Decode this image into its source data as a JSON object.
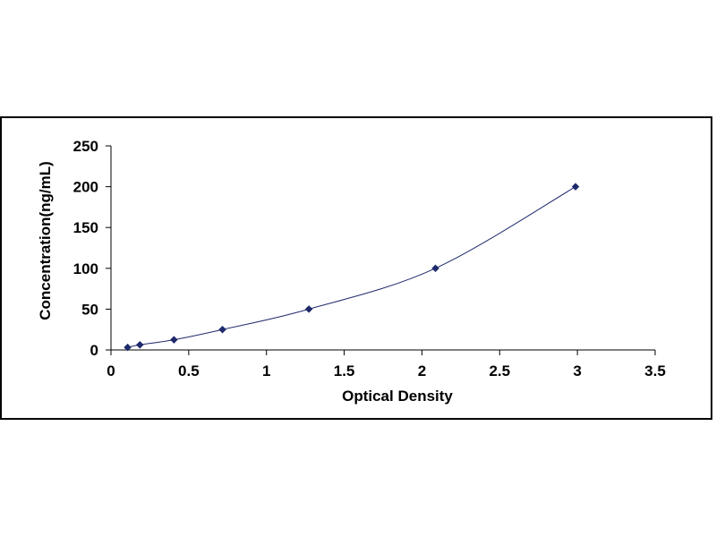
{
  "chart_data": {
    "type": "scatter",
    "title": "",
    "xlabel": "Optical Density",
    "ylabel": "Concentration(ng/mL)",
    "xlim": [
      0,
      3.5
    ],
    "ylim": [
      0,
      250
    ],
    "x_ticks": [
      0,
      0.5,
      1,
      1.5,
      2,
      2.5,
      3,
      3.5
    ],
    "x_tick_labels": [
      "0",
      "0.5",
      "1",
      "1.5",
      "2",
      "2.5",
      "3",
      "3.5"
    ],
    "y_ticks": [
      0,
      50,
      100,
      150,
      200,
      250
    ],
    "y_tick_labels": [
      "0",
      "50",
      "100",
      "150",
      "200",
      "250"
    ],
    "grid": false,
    "legend": "none",
    "series": [
      {
        "x": [
          0.107,
          0.186,
          0.405,
          0.717,
          1.273,
          2.087,
          2.988
        ],
        "y": [
          3.12,
          6.25,
          12.5,
          25,
          50,
          100,
          200
        ],
        "marker": "diamond",
        "marker_color": "#1f2a6b",
        "line": "smooth-trend",
        "line_color": "#1f2a6b"
      }
    ]
  }
}
